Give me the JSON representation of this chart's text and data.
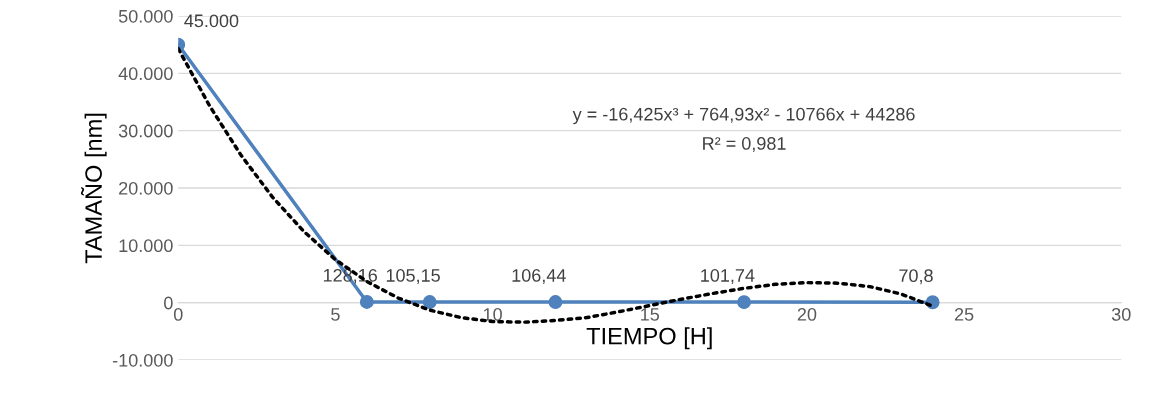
{
  "chart_data": {
    "type": "line",
    "xlabel": "TIEMPO [H]",
    "ylabel": "TAMAÑO [nm]",
    "xlim": [
      0,
      30
    ],
    "xticks": [
      0,
      5,
      10,
      15,
      20,
      25,
      30
    ],
    "ylim": [
      -10000,
      50000
    ],
    "yticks": [
      {
        "value": -10000,
        "label": "-10.000"
      },
      0,
      {
        "value": 10000,
        "label": "10.000"
      },
      {
        "value": 20000,
        "label": "20.000"
      },
      {
        "value": 30000,
        "label": "30.000"
      },
      {
        "value": 40000,
        "label": "40.000"
      },
      {
        "value": 50000,
        "label": "50.000"
      }
    ],
    "grid": "y",
    "legend": false,
    "series": [
      {
        "color": "#4f81bd",
        "marker": "circle",
        "line_style": "solid",
        "x": [
          0,
          6,
          8,
          12,
          18,
          24
        ],
        "values": [
          45000,
          128.16,
          105.15,
          106.44,
          101.74,
          70.8
        ],
        "value_labels": [
          "45.000",
          "128,16",
          "105,15",
          "106,44",
          "101,74",
          "70,8"
        ]
      },
      {
        "color": "#000000",
        "marker": "none",
        "line_style": "dotted",
        "x": [
          0,
          1,
          2,
          3,
          4,
          5,
          6,
          7,
          8,
          9,
          10,
          11,
          12,
          13,
          14,
          15,
          16,
          17,
          18,
          19,
          20,
          21,
          22,
          23,
          24
        ],
        "values": [
          44300,
          34300,
          25700,
          18400,
          12400,
          7500,
          3700,
          800,
          -1300,
          -2600,
          -3300,
          -3400,
          -3100,
          -2600,
          -1600,
          -500,
          600,
          1600,
          2500,
          3200,
          3500,
          3400,
          2800,
          1500,
          -600
        ]
      }
    ],
    "annotations": [
      "y = -16,425x³ + 764,93x² - 10766x + 44286",
      "R² = 0,981"
    ]
  }
}
